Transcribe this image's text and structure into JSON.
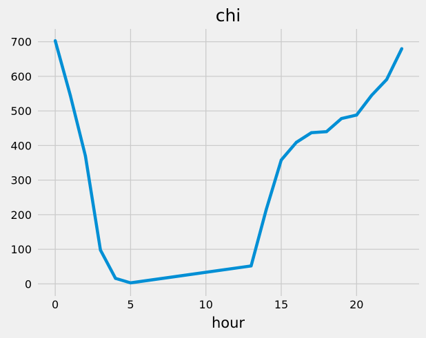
{
  "chart_data": {
    "type": "line",
    "title": "chi",
    "xlabel": "hour",
    "ylabel": "",
    "xlim": [
      -1.15,
      24.15
    ],
    "ylim": [
      -35,
      737
    ],
    "xticks": [
      0,
      5,
      10,
      15,
      20
    ],
    "yticks": [
      0,
      100,
      200,
      300,
      400,
      500,
      600,
      700
    ],
    "grid": true,
    "colors": {
      "line": "#008fd5",
      "grid": "#cbcbcb",
      "background": "#f0f0f0"
    },
    "series": [
      {
        "x": [
          0,
          1,
          2,
          3,
          4,
          5,
          13,
          14,
          15,
          16,
          17,
          18,
          19,
          20,
          21,
          22,
          23
        ],
        "values": [
          703,
          545,
          370,
          98,
          16,
          3,
          52,
          214,
          358,
          409,
          437,
          440,
          478,
          488,
          545,
          591,
          680
        ]
      }
    ]
  }
}
